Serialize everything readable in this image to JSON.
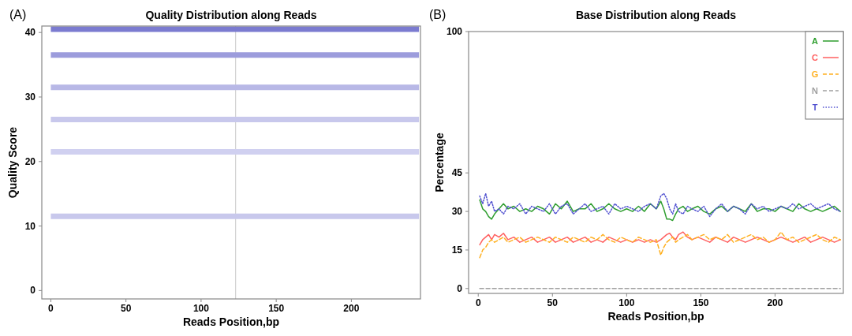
{
  "chart_data": [
    {
      "type": "line",
      "title": "Quality Distribution along Reads",
      "xlabel": "Reads Position,bp",
      "ylabel": "Quality Score",
      "annotations": [
        "(A)"
      ],
      "xlim": [
        -6,
        246
      ],
      "ylim": [
        -1.3,
        41
      ],
      "xticks": [
        0,
        50,
        100,
        150,
        200
      ],
      "yticks": [
        0,
        10,
        20,
        30,
        40
      ],
      "grid": false,
      "legend": false,
      "marker": "none",
      "ref_lines": [
        {
          "axis": "x",
          "value": 123,
          "color": "#c8c8c8"
        }
      ],
      "series": [
        {
          "color": "#7b7bd0",
          "x": [
            0,
            245
          ],
          "values": [
            40.5,
            40.5
          ]
        },
        {
          "color": "#9c9cdc",
          "x": [
            0,
            245
          ],
          "values": [
            36.5,
            36.5
          ]
        },
        {
          "color": "#b8b8e6",
          "x": [
            0,
            245
          ],
          "values": [
            31.5,
            31.5
          ]
        },
        {
          "color": "#c8c8ec",
          "x": [
            0,
            245
          ],
          "values": [
            26.5,
            26.5
          ]
        },
        {
          "color": "#d0d0f0",
          "x": [
            0,
            245
          ],
          "values": [
            21.5,
            21.5
          ]
        },
        {
          "color": "#c8c8ec",
          "x": [
            0,
            245
          ],
          "values": [
            11.5,
            11.5
          ]
        }
      ]
    },
    {
      "type": "line",
      "title": "Base Distribution along Reads",
      "xlabel": "Reads Position,bp",
      "ylabel": "Percentage",
      "annotations": [
        "(B)"
      ],
      "xlim": [
        -6.5,
        246
      ],
      "ylim": [
        -1.9,
        100
      ],
      "xticks": [
        0,
        50,
        100,
        150,
        200
      ],
      "yticks": [
        0,
        15,
        30,
        45,
        100
      ],
      "grid": false,
      "legend": "top right",
      "marker": "none",
      "x": [
        1,
        3,
        5,
        7,
        9,
        11,
        14,
        17,
        20,
        24,
        28,
        32,
        36,
        40,
        44,
        48,
        52,
        56,
        60,
        64,
        68,
        72,
        76,
        80,
        84,
        88,
        92,
        96,
        100,
        104,
        108,
        112,
        116,
        120,
        123,
        125,
        127,
        129,
        131,
        133,
        135,
        138,
        141,
        144,
        148,
        152,
        156,
        160,
        164,
        168,
        172,
        176,
        180,
        184,
        188,
        192,
        196,
        200,
        204,
        208,
        212,
        216,
        220,
        224,
        228,
        232,
        236,
        240,
        244
      ],
      "series": [
        {
          "name": "A",
          "color": "#2e9e2e",
          "line_style": "solid",
          "values": [
            34.5,
            31,
            30,
            28,
            27,
            29,
            31,
            33,
            31,
            32,
            30,
            31,
            30,
            32,
            31,
            29,
            33,
            31,
            34,
            30,
            31,
            31,
            33,
            30,
            31,
            33,
            31,
            30,
            31,
            30,
            32,
            30,
            33,
            31,
            34,
            31,
            27,
            27,
            26.5,
            29,
            31,
            32,
            30,
            31,
            32,
            30,
            29,
            31,
            32,
            30,
            32,
            31,
            30,
            33,
            30,
            31,
            31,
            30,
            32,
            31,
            30,
            33,
            31,
            30,
            31,
            30,
            31,
            32,
            30
          ]
        },
        {
          "name": "C",
          "color": "#ff6060",
          "line_style": "solid",
          "values": [
            17,
            19,
            20,
            21,
            19,
            21,
            20,
            21.5,
            19,
            20,
            18,
            19,
            20,
            18,
            19,
            20,
            18,
            19,
            20,
            18,
            19,
            20,
            18,
            19,
            18,
            20,
            19,
            18,
            19,
            18,
            19,
            18,
            19,
            18,
            19,
            20,
            21,
            21.5,
            20,
            19,
            21,
            22,
            20,
            19,
            20,
            19,
            18,
            20,
            19,
            18,
            20,
            19,
            18,
            19,
            20,
            19,
            18,
            19,
            20,
            19,
            18,
            19,
            20,
            18,
            19,
            20,
            19,
            18,
            19
          ]
        },
        {
          "name": "G",
          "color": "#ffb020",
          "line_style": "dashed",
          "values": [
            12,
            15,
            16,
            18,
            19,
            18,
            19,
            20,
            18,
            19,
            20,
            18,
            19,
            20,
            19,
            18,
            20,
            19,
            18,
            20,
            19,
            18,
            20,
            19,
            21,
            19,
            18,
            20,
            19,
            18,
            20,
            19,
            18,
            19,
            13,
            16,
            18,
            19,
            20,
            18,
            19,
            20,
            21,
            19,
            20,
            21,
            19,
            20,
            19,
            21,
            18,
            19,
            20,
            21,
            19,
            20,
            18,
            19,
            22,
            19,
            20,
            18,
            19,
            20,
            21,
            19,
            18,
            20,
            19
          ]
        },
        {
          "name": "N",
          "color": "#a0a0a0",
          "line_style": "dashed",
          "x": [
            1,
            244
          ],
          "values": [
            0,
            0
          ]
        },
        {
          "name": "T",
          "color": "#5050d0",
          "line_style": "dotted",
          "values": [
            36,
            33,
            37,
            32,
            34,
            30,
            31,
            29,
            32,
            31,
            33,
            29,
            32,
            31,
            30,
            33,
            29,
            32,
            33,
            29,
            31,
            33,
            30,
            31,
            32,
            29,
            33,
            31,
            32,
            31,
            30,
            32,
            33,
            31,
            36,
            37,
            35,
            31,
            29,
            33,
            30,
            29,
            32,
            31,
            30,
            32,
            28,
            31,
            33,
            30,
            32,
            31,
            29,
            33,
            31,
            32,
            30,
            31,
            32,
            31,
            33,
            31,
            32,
            33,
            31,
            32,
            33,
            31,
            30
          ]
        }
      ]
    }
  ]
}
